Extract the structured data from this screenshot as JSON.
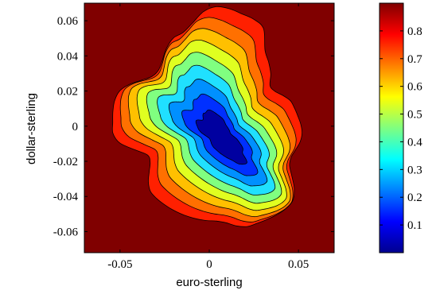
{
  "chart_data": {
    "type": "heatmap",
    "subtype": "filled-contour",
    "title": "",
    "xlabel": "euro-sterling",
    "ylabel": "dollar-sterling",
    "xlim": [
      -0.07,
      0.07
    ],
    "ylim": [
      -0.072,
      0.07
    ],
    "x_ticks": [
      -0.05,
      0,
      0.05
    ],
    "x_tick_labels": [
      "-0.05",
      "0",
      "0.05"
    ],
    "y_ticks": [
      0.06,
      0.04,
      0.02,
      0,
      -0.02,
      -0.04,
      -0.06
    ],
    "y_tick_labels": [
      "0.06",
      "0.04",
      "0.02",
      "0",
      "-0.02",
      "-0.04",
      "-0.06"
    ],
    "colorbar": {
      "colormap": "jet",
      "range": [
        0.0,
        0.9
      ],
      "ticks": [
        0.1,
        0.2,
        0.3,
        0.4,
        0.5,
        0.6,
        0.7,
        0.8
      ],
      "tick_labels": [
        "0.1",
        "0.2",
        "0.3",
        "0.4",
        "0.5",
        "0.6",
        "0.7",
        "0.8"
      ]
    },
    "contour_levels": [
      {
        "level": 0.9,
        "color": "#800000"
      },
      {
        "level": 0.8,
        "color": "#ff2000"
      },
      {
        "level": 0.7,
        "color": "#ff7000"
      },
      {
        "level": 0.6,
        "color": "#ffc000"
      },
      {
        "level": 0.5,
        "color": "#e0ff20"
      },
      {
        "level": 0.4,
        "color": "#80ff80"
      },
      {
        "level": 0.3,
        "color": "#20e0ff"
      },
      {
        "level": 0.2,
        "color": "#0090ff"
      },
      {
        "level": 0.1,
        "color": "#0030ff"
      },
      {
        "level": 0.0,
        "color": "#0000a0"
      }
    ],
    "grid": false,
    "legend": "colorbar-right"
  }
}
